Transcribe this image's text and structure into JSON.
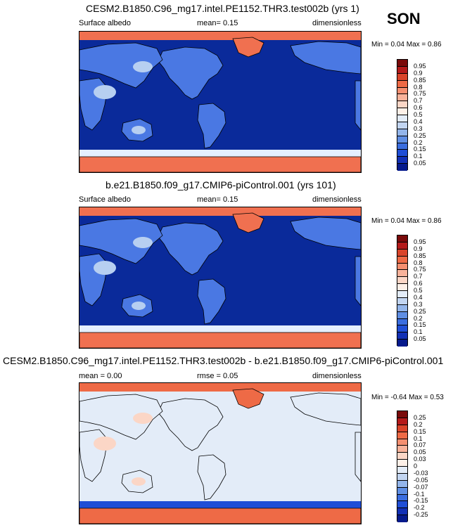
{
  "season": "SON",
  "panels": [
    {
      "title": "CESM2.B1850.C96_mg17.intel.PE1152.THR3.test002b (yrs 1)",
      "left_label": "Surface albedo",
      "center_label": "mean=  0.15",
      "right_label": "dimensionless",
      "minmax": "Min =  0.04 Max =  0.86",
      "colorbar": {
        "levels": [
          "0.95",
          "0.9",
          "0.85",
          "0.8",
          "0.75",
          "0.7",
          "0.6",
          "0.5",
          "0.4",
          "0.3",
          "0.25",
          "0.2",
          "0.15",
          "0.1",
          "0.05"
        ],
        "colors": [
          "#7a0a0a",
          "#b41a1a",
          "#d9442a",
          "#ee6a46",
          "#f58f70",
          "#f8b29a",
          "#fbd6c6",
          "#fdf0e8",
          "#e3ecf8",
          "#c2d5f1",
          "#93b5ea",
          "#5f8ee3",
          "#3a6ddf",
          "#1f4ed6",
          "#1230b5",
          "#061a8c"
        ]
      },
      "fields": {
        "land": "#4a78e3",
        "ocean": "#0a2a9a",
        "snow": "#f07050",
        "desert": "#b7cff1",
        "seaice": "#e5efff"
      }
    },
    {
      "title": "b.e21.B1850.f09_g17.CMIP6-piControl.001 (yrs 101)",
      "left_label": "Surface albedo",
      "center_label": "mean=  0.15",
      "right_label": "dimensionless",
      "minmax": "Min =  0.04 Max =  0.86",
      "colorbar": {
        "levels": [
          "0.95",
          "0.9",
          "0.85",
          "0.8",
          "0.75",
          "0.7",
          "0.6",
          "0.5",
          "0.4",
          "0.3",
          "0.25",
          "0.2",
          "0.15",
          "0.1",
          "0.05"
        ],
        "colors": [
          "#7a0a0a",
          "#b41a1a",
          "#d9442a",
          "#ee6a46",
          "#f58f70",
          "#f8b29a",
          "#fbd6c6",
          "#fdf0e8",
          "#e3ecf8",
          "#c2d5f1",
          "#93b5ea",
          "#5f8ee3",
          "#3a6ddf",
          "#1f4ed6",
          "#1230b5",
          "#061a8c"
        ]
      },
      "fields": {
        "land": "#4a78e3",
        "ocean": "#0a2a9a",
        "snow": "#f07050",
        "desert": "#b7cff1",
        "seaice": "#e5efff"
      }
    },
    {
      "title": "CESM2.B1850.C96_mg17.intel.PE1152.THR3.test002b - b.e21.B1850.f09_g17.CMIP6-piControl.001",
      "left_label": "mean =  0.00",
      "center_label": "rmse =  0.05",
      "right_label": "dimensionless",
      "minmax": "Min = -0.64 Max =  0.53",
      "colorbar": {
        "levels": [
          "0.25",
          "0.2",
          "0.15",
          "0.1",
          "0.07",
          "0.05",
          "0.03",
          "0",
          "-0.03",
          "-0.05",
          "-0.07",
          "-0.1",
          "-0.15",
          "-0.2",
          "-0.25"
        ],
        "colors": [
          "#7a0a0a",
          "#b41a1a",
          "#d9442a",
          "#ee6a46",
          "#f58f70",
          "#f8b29a",
          "#fbd6c6",
          "#fdf0e8",
          "#e3ecf8",
          "#c2d5f1",
          "#93b5ea",
          "#5f8ee3",
          "#3a6ddf",
          "#1f4ed6",
          "#1230b5",
          "#061a8c"
        ]
      },
      "fields": {
        "land": "#e3ecf8",
        "ocean": "#e3ecf8",
        "snow": "#ee6a46",
        "desert": "#fbd6c6",
        "seaice": "#1f4ed6"
      }
    }
  ],
  "chart_data": {
    "type": "heatmap",
    "variable": "Surface albedo",
    "units": "dimensionless",
    "season": "SON",
    "maps": [
      {
        "case": "CESM2.B1850.C96_mg17.intel.PE1152.THR3.test002b (yrs 1)",
        "mean": 0.15,
        "min": 0.04,
        "max": 0.86,
        "contour_levels": [
          0.05,
          0.1,
          0.15,
          0.2,
          0.25,
          0.3,
          0.4,
          0.5,
          0.6,
          0.7,
          0.75,
          0.8,
          0.85,
          0.9,
          0.95
        ]
      },
      {
        "case": "b.e21.B1850.f09_g17.CMIP6-piControl.001 (yrs 101)",
        "mean": 0.15,
        "min": 0.04,
        "max": 0.86,
        "contour_levels": [
          0.05,
          0.1,
          0.15,
          0.2,
          0.25,
          0.3,
          0.4,
          0.5,
          0.6,
          0.7,
          0.75,
          0.8,
          0.85,
          0.9,
          0.95
        ]
      },
      {
        "case": "CESM2.B1850.C96_mg17.intel.PE1152.THR3.test002b - b.e21.B1850.f09_g17.CMIP6-piControl.001",
        "mean": 0.0,
        "rmse": 0.05,
        "min": -0.64,
        "max": 0.53,
        "contour_levels": [
          -0.25,
          -0.2,
          -0.15,
          -0.1,
          -0.07,
          -0.05,
          -0.03,
          0,
          0.03,
          0.05,
          0.07,
          0.1,
          0.15,
          0.2,
          0.25
        ]
      }
    ]
  }
}
